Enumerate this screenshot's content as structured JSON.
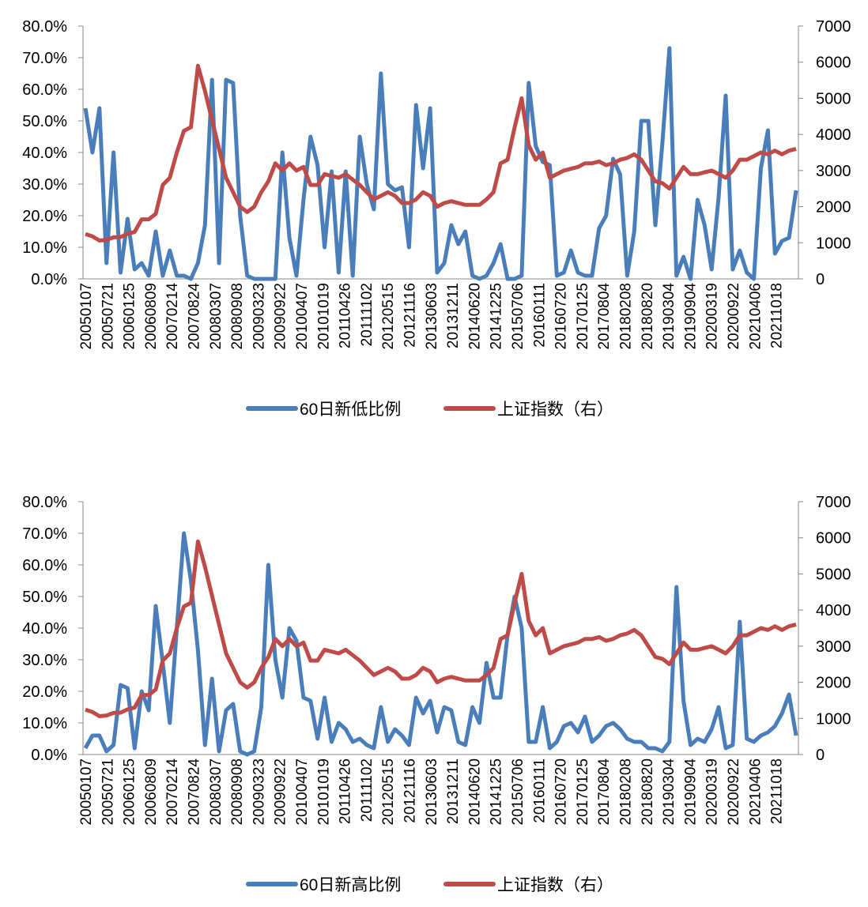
{
  "colors": {
    "low_high": "#4a7ebb",
    "index": "#be4b48",
    "axis": "#888888"
  },
  "chart_data": [
    {
      "type": "line",
      "title": "",
      "x_tick_labels": [
        "20050107",
        "20050721",
        "20060125",
        "20060809",
        "20070214",
        "20070824",
        "20080307",
        "20080908",
        "20090323",
        "20090922",
        "20100407",
        "20101019",
        "20110426",
        "20111102",
        "20120515",
        "20121116",
        "20130603",
        "20131211",
        "20140620",
        "20141225",
        "20150706",
        "20160111",
        "20160720",
        "20170125",
        "20170804",
        "20180208",
        "20180820",
        "20190304",
        "20190904",
        "20200319",
        "20200922",
        "20210406",
        "20211018"
      ],
      "y_left": {
        "ticks": [
          "0.0%",
          "10.0%",
          "20.0%",
          "30.0%",
          "40.0%",
          "50.0%",
          "60.0%",
          "70.0%",
          "80.0%"
        ],
        "range": [
          0,
          80
        ]
      },
      "y_right": {
        "ticks": [
          "0",
          "1000",
          "2000",
          "3000",
          "4000",
          "5000",
          "6000",
          "7000"
        ],
        "range": [
          0,
          7000
        ]
      },
      "legend": [
        "60日新低比例",
        "上证指数（右）"
      ],
      "legend_position": "bottom",
      "series": [
        {
          "name": "60日新低比例",
          "axis": "left",
          "values": [
            54,
            40,
            54,
            5,
            40,
            2,
            19,
            3,
            5,
            1,
            15,
            1,
            9,
            1,
            1,
            0,
            5,
            17,
            63,
            5,
            63,
            62,
            20,
            1,
            0,
            0,
            0,
            0,
            40,
            13,
            1,
            25,
            45,
            36,
            10,
            34,
            2,
            34,
            1,
            45,
            30,
            22,
            65,
            30,
            28,
            29,
            10,
            55,
            35,
            54,
            2,
            5,
            17,
            11,
            15,
            1,
            0,
            1,
            5,
            11,
            0,
            0,
            1,
            62,
            42,
            37,
            36,
            1,
            2,
            9,
            2,
            1,
            1,
            16,
            20,
            38,
            33,
            1,
            15,
            50,
            50,
            17,
            43,
            73,
            1,
            7,
            0,
            25,
            17,
            3,
            26,
            58,
            3,
            9,
            2,
            0,
            35,
            47,
            8,
            12,
            13,
            28
          ]
        },
        {
          "name": "上证指数（右）",
          "axis": "right",
          "values": [
            1240,
            1180,
            1060,
            1080,
            1150,
            1160,
            1250,
            1300,
            1650,
            1650,
            1800,
            2600,
            2800,
            3500,
            4100,
            4200,
            5900,
            5200,
            4400,
            3600,
            2800,
            2400,
            2000,
            1850,
            2000,
            2400,
            2700,
            3200,
            3000,
            3200,
            3000,
            3100,
            2600,
            2600,
            2900,
            2850,
            2800,
            2900,
            2750,
            2600,
            2400,
            2200,
            2300,
            2400,
            2300,
            2100,
            2100,
            2200,
            2400,
            2300,
            2000,
            2100,
            2150,
            2100,
            2050,
            2050,
            2050,
            2200,
            2400,
            3200,
            3300,
            4200,
            5000,
            3700,
            3300,
            3500,
            2800,
            2900,
            3000,
            3050,
            3100,
            3200,
            3200,
            3250,
            3150,
            3200,
            3300,
            3350,
            3450,
            3300,
            3000,
            2700,
            2650,
            2500,
            2800,
            3100,
            2900,
            2900,
            2950,
            3000,
            2900,
            2800,
            3000,
            3300,
            3300,
            3400,
            3500,
            3450,
            3550,
            3450,
            3550,
            3600
          ]
        }
      ]
    },
    {
      "type": "line",
      "title": "",
      "x_tick_labels": [
        "20050107",
        "20050721",
        "20060125",
        "20060809",
        "20070214",
        "20070824",
        "20080307",
        "20080908",
        "20090323",
        "20090922",
        "20100407",
        "20101019",
        "20110426",
        "20111102",
        "20120515",
        "20121116",
        "20130603",
        "20131211",
        "20140620",
        "20141225",
        "20150706",
        "20160111",
        "20160720",
        "20170125",
        "20170804",
        "20180208",
        "20180820",
        "20190304",
        "20190904",
        "20200319",
        "20200922",
        "20210406",
        "20211018"
      ],
      "y_left": {
        "ticks": [
          "0.0%",
          "10.0%",
          "20.0%",
          "30.0%",
          "40.0%",
          "50.0%",
          "60.0%",
          "70.0%",
          "80.0%"
        ],
        "range": [
          0,
          80
        ]
      },
      "y_right": {
        "ticks": [
          "0",
          "1000",
          "2000",
          "3000",
          "4000",
          "5000",
          "6000",
          "7000"
        ],
        "range": [
          0,
          7000
        ]
      },
      "legend": [
        "60日新高比例",
        "上证指数（右）"
      ],
      "legend_position": "bottom",
      "series": [
        {
          "name": "60日新高比例",
          "axis": "left",
          "values": [
            2,
            6,
            6,
            1,
            3,
            22,
            21,
            2,
            20,
            14,
            47,
            29,
            10,
            40,
            70,
            55,
            33,
            3,
            24,
            1,
            14,
            16,
            1,
            0,
            1,
            15,
            60,
            30,
            18,
            40,
            36,
            18,
            17,
            5,
            18,
            4,
            10,
            8,
            4,
            5,
            3,
            2,
            15,
            4,
            8,
            6,
            3,
            18,
            13,
            17,
            7,
            15,
            14,
            4,
            3,
            15,
            10,
            29,
            18,
            18,
            38,
            50,
            40,
            4,
            4,
            15,
            2,
            4,
            9,
            10,
            7,
            12,
            4,
            6,
            9,
            10,
            8,
            5,
            4,
            4,
            2,
            2,
            1,
            4,
            53,
            17,
            3,
            5,
            4,
            8,
            15,
            2,
            3,
            42,
            5,
            4,
            6,
            7,
            9,
            13,
            19,
            6
          ]
        },
        {
          "name": "上证指数（右）",
          "axis": "right",
          "values": [
            1240,
            1180,
            1060,
            1080,
            1150,
            1160,
            1250,
            1300,
            1650,
            1650,
            1800,
            2600,
            2800,
            3500,
            4100,
            4200,
            5900,
            5200,
            4400,
            3600,
            2800,
            2400,
            2000,
            1850,
            2000,
            2400,
            2700,
            3200,
            3000,
            3200,
            3000,
            3100,
            2600,
            2600,
            2900,
            2850,
            2800,
            2900,
            2750,
            2600,
            2400,
            2200,
            2300,
            2400,
            2300,
            2100,
            2100,
            2200,
            2400,
            2300,
            2000,
            2100,
            2150,
            2100,
            2050,
            2050,
            2050,
            2200,
            2400,
            3200,
            3300,
            4200,
            5000,
            3700,
            3300,
            3500,
            2800,
            2900,
            3000,
            3050,
            3100,
            3200,
            3200,
            3250,
            3150,
            3200,
            3300,
            3350,
            3450,
            3300,
            3000,
            2700,
            2650,
            2500,
            2800,
            3100,
            2900,
            2900,
            2950,
            3000,
            2900,
            2800,
            3000,
            3300,
            3300,
            3400,
            3500,
            3450,
            3550,
            3450,
            3550,
            3600
          ]
        }
      ]
    }
  ]
}
